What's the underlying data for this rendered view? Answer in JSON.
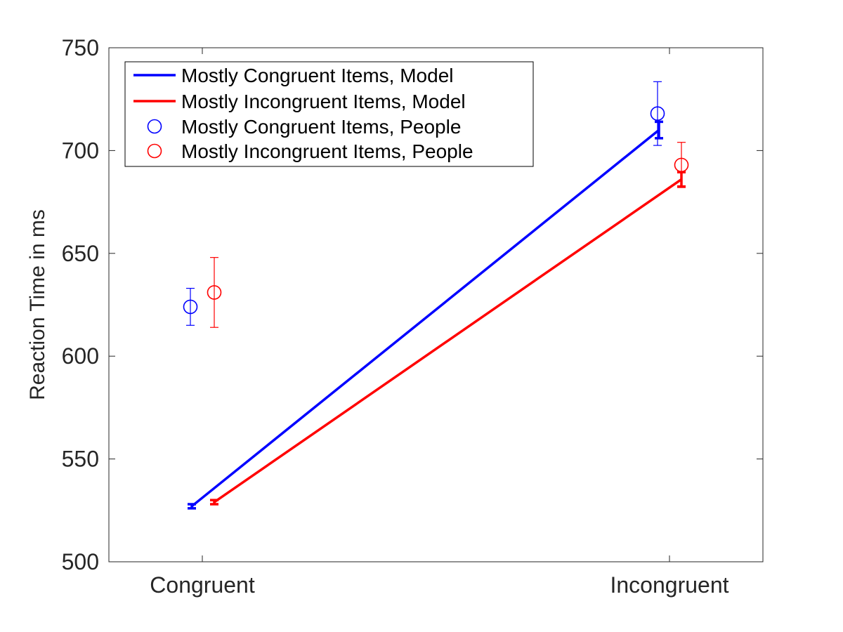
{
  "chart_data": {
    "type": "line",
    "title": "",
    "xlabel": "",
    "ylabel": "Reaction Time in ms",
    "categories": [
      "Congruent",
      "Incongruent"
    ],
    "ylim": [
      500,
      750
    ],
    "yticks": [
      500,
      550,
      600,
      650,
      700,
      750
    ],
    "grid": false,
    "legend_position": "top-left",
    "model_series": [
      {
        "name": "Mostly Congruent Items, Model",
        "color": "#0000ff",
        "values": [
          527,
          710
        ],
        "error": [
          1,
          4
        ]
      },
      {
        "name": "Mostly Incongruent Items, Model",
        "color": "#ff0000",
        "values": [
          529,
          686
        ],
        "error": [
          1,
          3.5
        ]
      }
    ],
    "people_series": [
      {
        "name": "Mostly Congruent Items, People",
        "color": "#0000ff",
        "marker": "circle",
        "values": [
          624,
          718
        ],
        "error": [
          9,
          15.5
        ]
      },
      {
        "name": "Mostly Incongruent Items, People",
        "color": "#ff0000",
        "marker": "circle",
        "values": [
          631,
          693
        ],
        "error": [
          17,
          11
        ]
      }
    ]
  }
}
